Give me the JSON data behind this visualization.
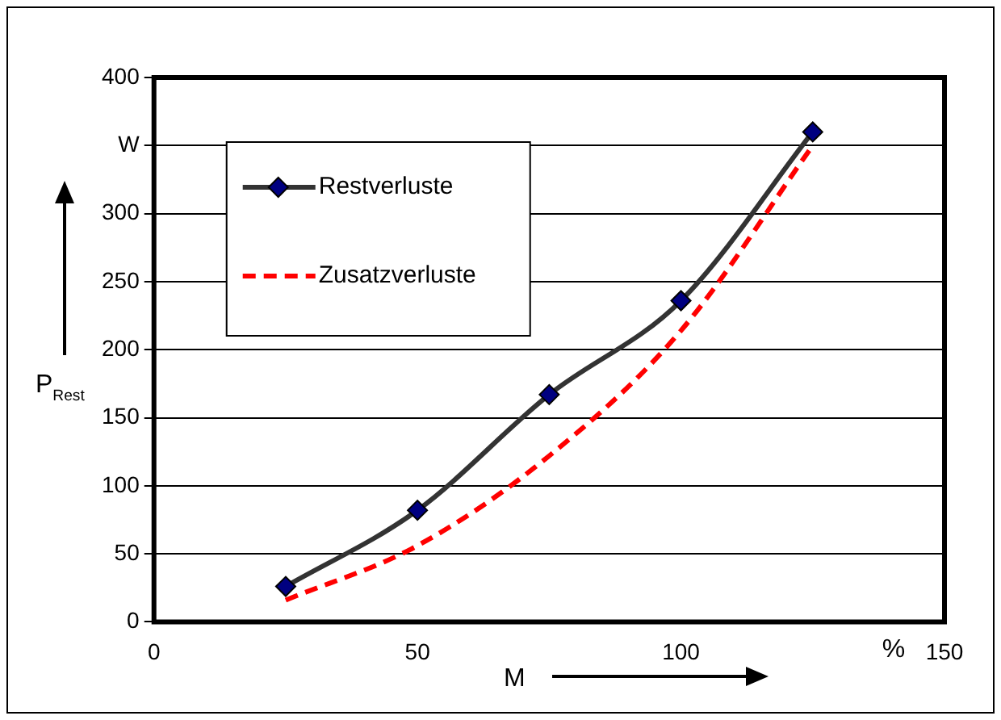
{
  "chart_data": {
    "type": "line",
    "xlabel": "M",
    "ylabel": "P$_{Rest}$",
    "x": [
      25,
      50,
      75,
      100,
      125
    ],
    "series": [
      {
        "name": "Restverluste",
        "color": "#333333",
        "values": [
          26,
          82,
          167,
          236,
          360
        ],
        "marker": "diamond",
        "line_style": "solid"
      },
      {
        "name": "Zusatzverluste",
        "color": "#ff0000",
        "values": [
          16,
          56,
          122,
          214,
          350
        ],
        "marker": "none",
        "line_style": "dashed"
      }
    ],
    "xlim": [
      0,
      150
    ],
    "xticks": [
      0,
      50,
      100,
      150
    ],
    "ylim": [
      0,
      400
    ],
    "yticks": [
      0,
      50,
      100,
      150,
      200,
      250,
      300,
      {
        "value": 350,
        "label": "W"
      },
      400
    ],
    "annotations": [
      "%"
    ],
    "grid": "y",
    "legend": "top left"
  }
}
